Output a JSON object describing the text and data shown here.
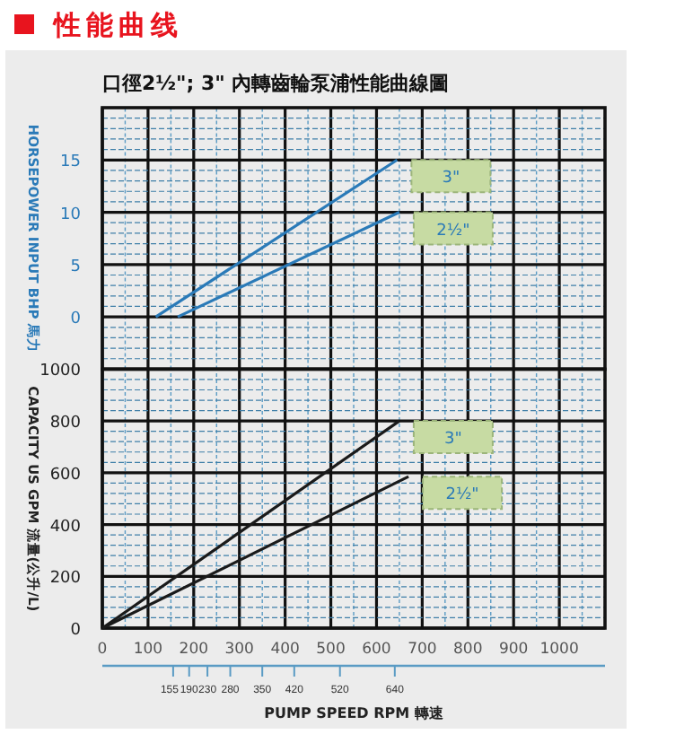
{
  "chart_data": [
    {
      "type": "line",
      "title": "性能曲线",
      "subtitle": "口徑2½\"; 3\" 內轉齒輪泵浦性能曲線圖",
      "ylabel": "HORSEPOWER INPUT BHP 馬力",
      "xlim": [
        0,
        1100
      ],
      "ylim": [
        -5,
        20
      ],
      "grid": true,
      "tick_labels": "y",
      "xticks": [
        0,
        {
          "value": 50,
          "label": null
        },
        100,
        {
          "value": 150,
          "label": null
        },
        200,
        {
          "value": 250,
          "label": null
        },
        300,
        {
          "value": 350,
          "label": null
        },
        400,
        {
          "value": 450,
          "label": null
        },
        500,
        {
          "value": 550,
          "label": null
        },
        600,
        {
          "value": 650,
          "label": null
        },
        700,
        {
          "value": 750,
          "label": null
        },
        800,
        {
          "value": 850,
          "label": null
        },
        900,
        {
          "value": 950,
          "label": null
        },
        1000,
        {
          "value": 1050,
          "label": null
        }
      ],
      "yticks": [
        {
          "value": -4,
          "label": null
        },
        {
          "value": -3,
          "label": null
        },
        {
          "value": -2,
          "label": null
        },
        {
          "value": -1,
          "label": null
        },
        0,
        {
          "value": 1,
          "label": null
        },
        {
          "value": 2,
          "label": null
        },
        {
          "value": 3,
          "label": null
        },
        {
          "value": 4,
          "label": null
        },
        5,
        {
          "value": 6,
          "label": null
        },
        {
          "value": 7,
          "label": null
        },
        {
          "value": 8,
          "label": null
        },
        {
          "value": 9,
          "label": null
        },
        10,
        {
          "value": 11,
          "label": null
        },
        {
          "value": 12,
          "label": null
        },
        {
          "value": 13,
          "label": null
        },
        {
          "value": 14,
          "label": null
        },
        15,
        {
          "value": 16,
          "label": null
        },
        {
          "value": 17,
          "label": null
        },
        {
          "value": 18,
          "label": null
        },
        {
          "value": 19,
          "label": null
        }
      ],
      "series": [
        {
          "name": "3\"",
          "color": "#2a7ab8",
          "x": [
            117,
            645
          ],
          "values": [
            0,
            15
          ]
        },
        {
          "name": "2½\"",
          "color": "#2a7ab8",
          "x": [
            165,
            650
          ],
          "values": [
            0,
            10
          ]
        }
      ]
    },
    {
      "type": "line",
      "xlabel": "PUMP SPEED RPM  轉速",
      "ylabel": "CAPACITY US GPM  流量(公升/L)",
      "xlim": [
        0,
        1100
      ],
      "ylim": [
        0,
        1000
      ],
      "grid": true,
      "x2lim": [
        0,
        1100
      ],
      "x2ticks": [
        155,
        190,
        230,
        280,
        350,
        420,
        520,
        640
      ],
      "xticks": [
        0,
        {
          "value": 50,
          "label": null
        },
        100,
        {
          "value": 150,
          "label": null
        },
        200,
        {
          "value": 250,
          "label": null
        },
        300,
        {
          "value": 350,
          "label": null
        },
        400,
        {
          "value": 450,
          "label": null
        },
        500,
        {
          "value": 550,
          "label": null
        },
        600,
        {
          "value": 650,
          "label": null
        },
        700,
        {
          "value": 750,
          "label": null
        },
        800,
        {
          "value": 850,
          "label": null
        },
        900,
        {
          "value": 950,
          "label": null
        },
        1000,
        {
          "value": 1050,
          "label": null
        }
      ],
      "yticks": [
        0,
        {
          "value": 40,
          "label": null
        },
        {
          "value": 80,
          "label": null
        },
        {
          "value": 120,
          "label": null
        },
        {
          "value": 160,
          "label": null
        },
        200,
        {
          "value": 240,
          "label": null
        },
        {
          "value": 280,
          "label": null
        },
        {
          "value": 320,
          "label": null
        },
        {
          "value": 360,
          "label": null
        },
        400,
        {
          "value": 440,
          "label": null
        },
        {
          "value": 480,
          "label": null
        },
        {
          "value": 520,
          "label": null
        },
        {
          "value": 560,
          "label": null
        },
        600,
        {
          "value": 640,
          "label": null
        },
        {
          "value": 680,
          "label": null
        },
        {
          "value": 720,
          "label": null
        },
        {
          "value": 760,
          "label": null
        },
        800,
        {
          "value": 840,
          "label": null
        },
        {
          "value": 880,
          "label": null
        },
        {
          "value": 920,
          "label": null
        },
        {
          "value": 960,
          "label": null
        },
        1000
      ],
      "series": [
        {
          "name": "3\"",
          "color": "#1a1a1a",
          "x": [
            0,
            650
          ],
          "values": [
            0,
            800
          ]
        },
        {
          "name": "2½\"",
          "color": "#1a1a1a",
          "x": [
            0,
            670
          ],
          "values": [
            0,
            585
          ]
        }
      ]
    }
  ]
}
